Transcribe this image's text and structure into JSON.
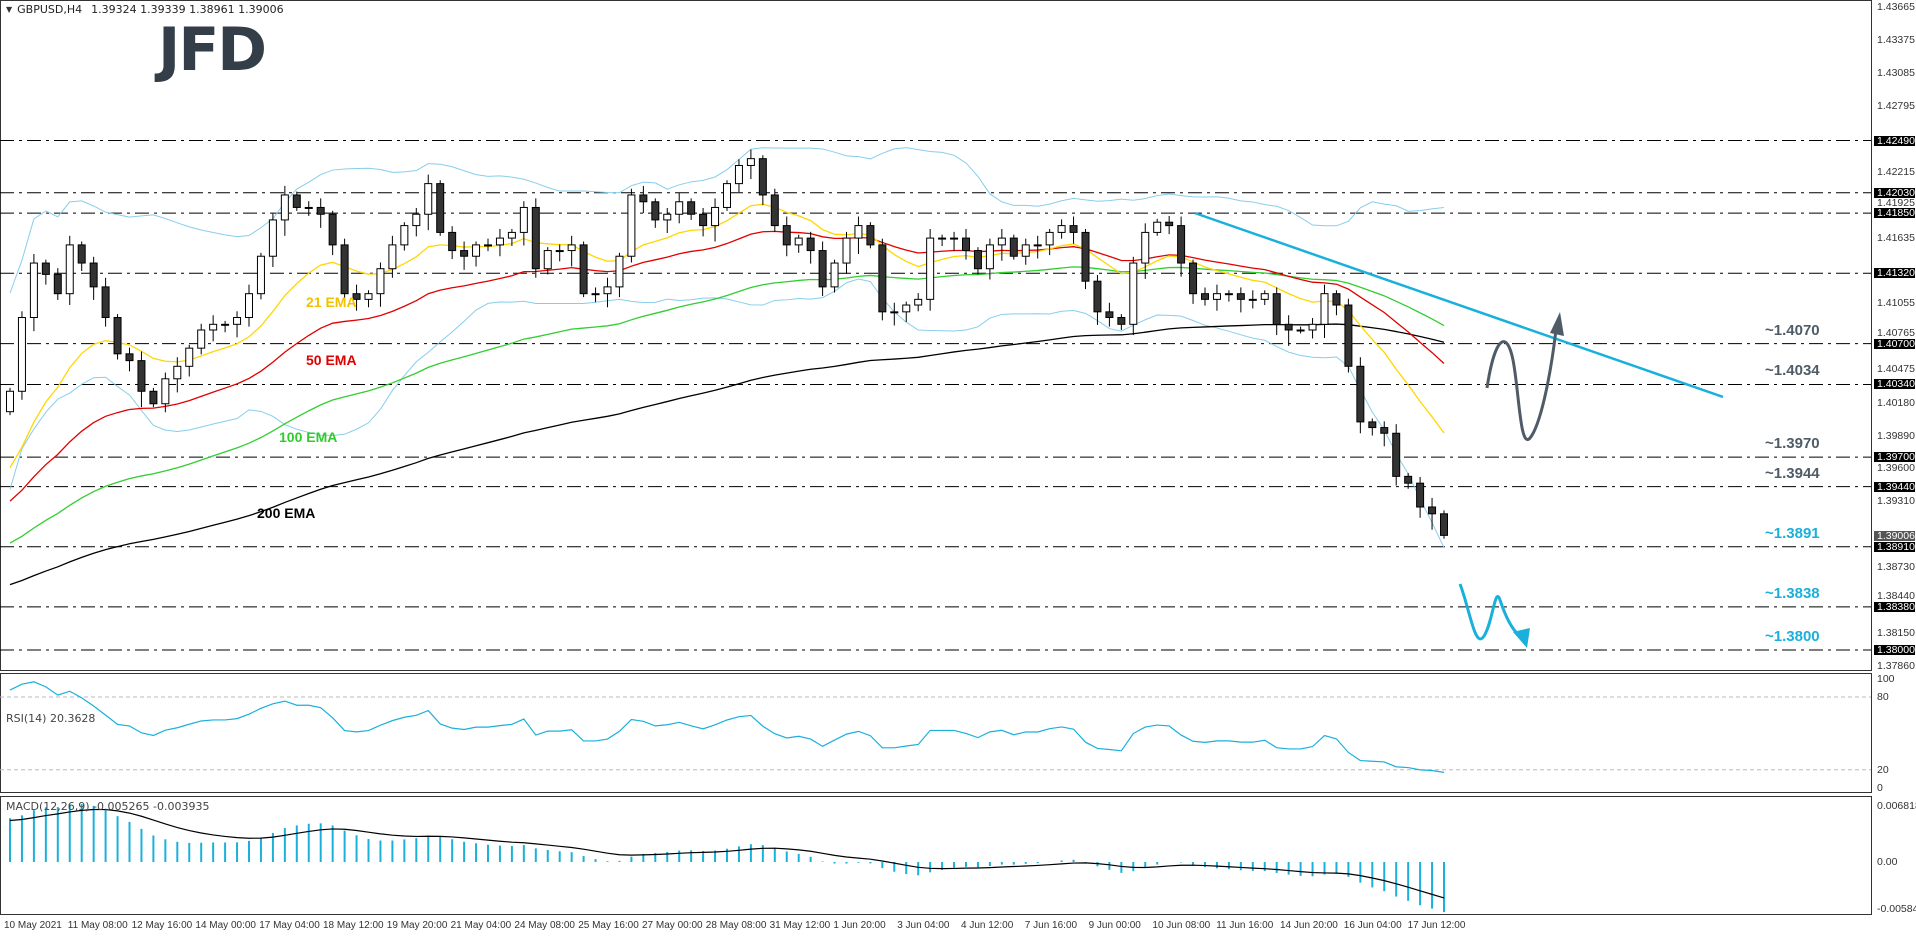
{
  "header": {
    "symbol_label": "GBPUSD,H4",
    "ohlc": "1.39324 1.39339 1.38961 1.39006",
    "icon": "triangle-down-icon"
  },
  "logo": {
    "text": "JFD"
  },
  "colors": {
    "bull": "#ffffff",
    "bear": "#333333",
    "ema21": "#ffd700",
    "ema50": "#e00000",
    "ema100": "#32cd32",
    "ema200": "#000000",
    "bollinger": "#87ceeb",
    "trend": "#1ab0dc",
    "annot_gray": "#4f5b66",
    "annot_blue": "#1ab0dc",
    "rsi": "#1ab0dc",
    "macd_hist": "#1ab0dc",
    "macd_signal": "#000000"
  },
  "ema_labels": {
    "ema21": "21 EMA",
    "ema50": "50 EMA",
    "ema100": "100 EMA",
    "ema200": "200 EMA"
  },
  "annotations": [
    {
      "text": "~1.4070",
      "price": 1.407,
      "tone": "gray"
    },
    {
      "text": "~1.4034",
      "price": 1.4034,
      "tone": "gray"
    },
    {
      "text": "~1.3970",
      "price": 1.397,
      "tone": "gray"
    },
    {
      "text": "~1.3944",
      "price": 1.3944,
      "tone": "gray"
    },
    {
      "text": "~1.3891",
      "price": 1.3891,
      "tone": "blue"
    },
    {
      "text": "~1.3838",
      "price": 1.3838,
      "tone": "blue"
    },
    {
      "text": "~1.3800",
      "price": 1.38,
      "tone": "blue"
    }
  ],
  "chart_data": {
    "type": "candlestick",
    "title": "GBPUSD,H4",
    "ylim": [
      1.3786,
      1.43665
    ],
    "price_ticks": [
      "1.43665",
      "1.43375",
      "1.43085",
      "1.42795",
      "1.42215",
      "1.41925",
      "1.41635",
      "1.41055",
      "1.40765",
      "1.40475",
      "1.40180",
      "1.39890",
      "1.39600",
      "1.39310",
      "1.38730",
      "1.38440",
      "1.38150",
      "1.37860"
    ],
    "level_boxes": [
      "1.42490",
      "1.42030",
      "1.41850",
      "1.41320",
      "1.40700",
      "1.40340",
      "1.39700",
      "1.39440",
      "1.38910",
      "1.38380",
      "1.38000"
    ],
    "current_price": "1.39006",
    "x_labels": [
      "10 May 2021",
      "11 May 08:00",
      "12 May 16:00",
      "14 May 00:00",
      "17 May 04:00",
      "18 May 12:00",
      "19 May 20:00",
      "21 May 04:00",
      "24 May 08:00",
      "25 May 16:00",
      "27 May 00:00",
      "28 May 08:00",
      "31 May 12:00",
      "1 Jun 20:00",
      "3 Jun 04:00",
      "4 Jun 12:00",
      "7 Jun 16:00",
      "9 Jun 00:00",
      "10 Jun 08:00",
      "11 Jun 16:00",
      "14 Jun 20:00",
      "16 Jun 04:00",
      "17 Jun 12:00"
    ],
    "closes": [
      1.4028,
      1.4093,
      1.4141,
      1.4131,
      1.4114,
      1.4157,
      1.4141,
      1.412,
      1.4093,
      1.4061,
      1.4055,
      1.4028,
      1.4017,
      1.4039,
      1.405,
      1.4066,
      1.4082,
      1.4087,
      1.4087,
      1.4093,
      1.4114,
      1.4147,
      1.4179,
      1.4201,
      1.419,
      1.419,
      1.4184,
      1.4157,
      1.4114,
      1.4109,
      1.4114,
      1.4136,
      1.4157,
      1.4174,
      1.4184,
      1.4211,
      1.4168,
      1.4152,
      1.4147,
      1.4157,
      1.4157,
      1.4163,
      1.4168,
      1.419,
      1.4136,
      1.4152,
      1.4152,
      1.4157,
      1.4114,
      1.4114,
      1.412,
      1.4147,
      1.4201,
      1.4195,
      1.4179,
      1.4184,
      1.4195,
      1.4184,
      1.4174,
      1.419,
      1.4211,
      1.4227,
      1.4233,
      1.4201,
      1.4174,
      1.4157,
      1.4163,
      1.4152,
      1.412,
      1.4141,
      1.4163,
      1.4174,
      1.4157,
      1.4098,
      1.4098,
      1.4104,
      1.4109,
      1.4163,
      1.4163,
      1.4163,
      1.4152,
      1.4136,
      1.4157,
      1.4163,
      1.4147,
      1.4157,
      1.4157,
      1.4168,
      1.4174,
      1.4168,
      1.4125,
      1.4098,
      1.4093,
      1.4087,
      1.4141,
      1.4168,
      1.4177,
      1.4174,
      1.4141,
      1.4114,
      1.4109,
      1.4114,
      1.4114,
      1.4109,
      1.4109,
      1.4114,
      1.4087,
      1.4082,
      1.4082,
      1.4087,
      1.4114,
      1.4104,
      1.405,
      1.4001,
      1.3996,
      1.3991,
      1.3953,
      1.3947,
      1.3926,
      1.392,
      1.3901
    ],
    "levels": [
      1.4249,
      1.4203,
      1.4185,
      1.4132,
      1.407,
      1.4034,
      1.397,
      1.3944,
      1.3891,
      1.3838,
      1.38
    ],
    "trendline": {
      "from_price": 1.4185,
      "from_label": "10 Jun 08:00",
      "to_price": 1.4023
    },
    "rsi": {
      "label": "RSI(14) 20.3628",
      "ylim": [
        0,
        100
      ],
      "levels": [
        80,
        20
      ],
      "ticks": [
        "100",
        "80",
        "20",
        "0"
      ]
    },
    "macd": {
      "label": "MACD(12,26,9) -0.005265 -0.003935",
      "ylim": [
        -0.005841,
        0.006818
      ],
      "ticks": [
        "0.006818",
        "0.00",
        "-0.005841"
      ]
    }
  }
}
